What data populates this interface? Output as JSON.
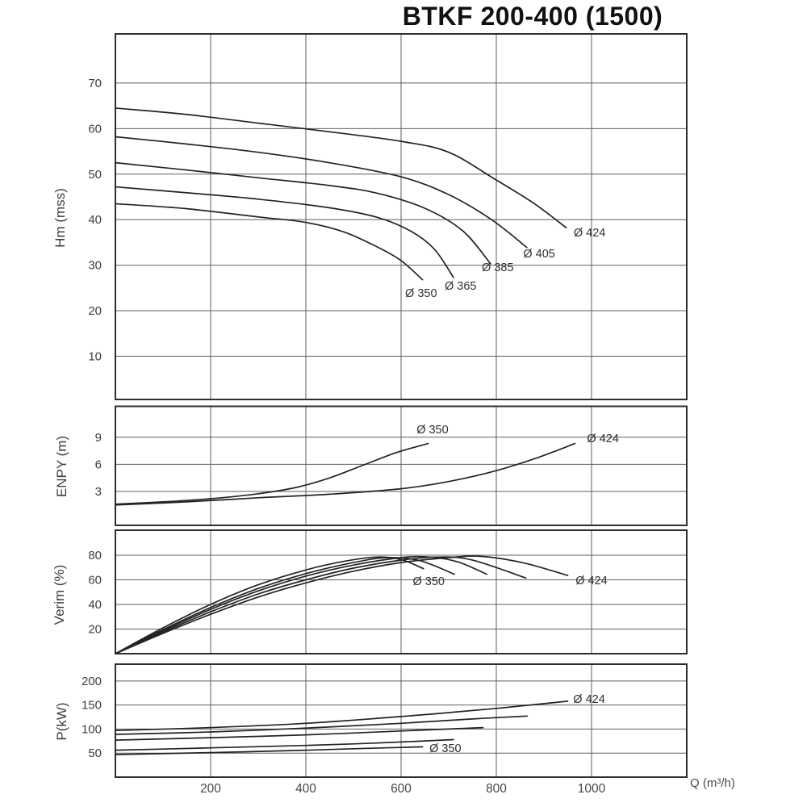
{
  "title": "BTKF 200-400 (1500)",
  "x_axis": {
    "label": "Q (m³/h)",
    "ticks": [
      200,
      400,
      600,
      800,
      1000
    ],
    "range": [
      0,
      1200
    ]
  },
  "chart_data": [
    {
      "type": "line",
      "name": "head-curves",
      "ylabel": "Hm (mss)",
      "yticks": [
        10,
        20,
        30,
        40,
        50,
        60,
        70
      ],
      "ylim": [
        0.5,
        80.8
      ],
      "grid": true,
      "series": [
        {
          "name": "Ø 424",
          "points": [
            [
              0,
              64.5
            ],
            [
              150,
              63.1
            ],
            [
              300,
              61.2
            ],
            [
              450,
              59.3
            ],
            [
              600,
              57.2
            ],
            [
              700,
              54.8
            ],
            [
              800,
              48.7
            ],
            [
              880,
              43.5
            ],
            [
              947,
              38.2
            ]
          ]
        },
        {
          "name": "Ø 405",
          "points": [
            [
              0,
              58.2
            ],
            [
              150,
              56.6
            ],
            [
              300,
              54.8
            ],
            [
              450,
              52.5
            ],
            [
              600,
              49.4
            ],
            [
              700,
              45.5
            ],
            [
              790,
              40.0
            ],
            [
              864,
              33.9
            ]
          ]
        },
        {
          "name": "Ø 385",
          "points": [
            [
              0,
              52.5
            ],
            [
              150,
              50.9
            ],
            [
              300,
              49.2
            ],
            [
              450,
              47.5
            ],
            [
              550,
              45.8
            ],
            [
              650,
              42.5
            ],
            [
              730,
              37.5
            ],
            [
              788,
              30.3
            ]
          ]
        },
        {
          "name": "Ø 365",
          "points": [
            [
              0,
              47.2
            ],
            [
              150,
              45.9
            ],
            [
              300,
              44.5
            ],
            [
              450,
              42.6
            ],
            [
              550,
              40.5
            ],
            [
              620,
              37.5
            ],
            [
              670,
              33.5
            ],
            [
              710,
              27.3
            ]
          ]
        },
        {
          "name": "Ø 350",
          "points": [
            [
              0,
              43.5
            ],
            [
              150,
              42.4
            ],
            [
              300,
              40.6
            ],
            [
              400,
              39.4
            ],
            [
              480,
              37.3
            ],
            [
              550,
              34.0
            ],
            [
              600,
              31.0
            ],
            [
              645,
              26.8
            ]
          ]
        }
      ],
      "labels": [
        {
          "text": "Ø 350",
          "q": 642,
          "v": 23.9
        },
        {
          "text": "Ø 365",
          "q": 725,
          "v": 25.5
        },
        {
          "text": "Ø 385",
          "q": 803,
          "v": 29.6
        },
        {
          "text": "Ø 405",
          "q": 890,
          "v": 32.6
        },
        {
          "text": "Ø 424",
          "q": 996,
          "v": 37.2
        }
      ]
    },
    {
      "type": "line",
      "name": "npsh-curves",
      "ylabel": "ENPY (m)",
      "yticks": [
        3,
        6,
        9
      ],
      "ylim": [
        -0.75,
        12.42
      ],
      "grid": true,
      "series": [
        {
          "name": "Ø 350",
          "points": [
            [
              0,
              1.6
            ],
            [
              100,
              1.85
            ],
            [
              200,
              2.2
            ],
            [
              300,
              2.75
            ],
            [
              380,
              3.45
            ],
            [
              450,
              4.5
            ],
            [
              520,
              5.9
            ],
            [
              590,
              7.3
            ],
            [
              657,
              8.3
            ]
          ]
        },
        {
          "name": "Ø 424",
          "points": [
            [
              0,
              1.5
            ],
            [
              150,
              1.85
            ],
            [
              300,
              2.3
            ],
            [
              450,
              2.7
            ],
            [
              600,
              3.3
            ],
            [
              700,
              4.1
            ],
            [
              800,
              5.3
            ],
            [
              890,
              6.8
            ],
            [
              965,
              8.3
            ]
          ]
        }
      ],
      "labels": [
        {
          "text": "Ø 350",
          "q": 666,
          "v": 9.88
        },
        {
          "text": "Ø 424",
          "q": 1024,
          "v": 8.89
        }
      ]
    },
    {
      "type": "line",
      "name": "efficiency-curves",
      "ylabel": "Verim (%)",
      "yticks": [
        20,
        40,
        60,
        80
      ],
      "ylim": [
        0,
        100.3
      ],
      "grid": true,
      "series": [
        {
          "name": "Ø 350",
          "points": [
            [
              0,
              0
            ],
            [
              100,
              21
            ],
            [
              200,
              40
            ],
            [
              300,
              56
            ],
            [
              400,
              68
            ],
            [
              480,
              75
            ],
            [
              550,
              78.5
            ],
            [
              600,
              76.5
            ],
            [
              647,
              69
            ]
          ]
        },
        {
          "name": "Ø 365",
          "points": [
            [
              0,
              0
            ],
            [
              100,
              19.5
            ],
            [
              200,
              37.5
            ],
            [
              300,
              53
            ],
            [
              400,
              65
            ],
            [
              500,
              74
            ],
            [
              570,
              78
            ],
            [
              640,
              75.5
            ],
            [
              712,
              64.5
            ]
          ]
        },
        {
          "name": "Ø 385",
          "points": [
            [
              0,
              0
            ],
            [
              100,
              18.5
            ],
            [
              200,
              36
            ],
            [
              300,
              51
            ],
            [
              400,
              63
            ],
            [
              500,
              72
            ],
            [
              600,
              78
            ],
            [
              660,
              78.5
            ],
            [
              720,
              74.5
            ],
            [
              780,
              64.5
            ]
          ]
        },
        {
          "name": "Ø 405",
          "points": [
            [
              0,
              0
            ],
            [
              100,
              17.5
            ],
            [
              200,
              34
            ],
            [
              300,
              48.5
            ],
            [
              400,
              60
            ],
            [
              500,
              69.5
            ],
            [
              600,
              76
            ],
            [
              680,
              78.5
            ],
            [
              750,
              76
            ],
            [
              862,
              61.5
            ]
          ]
        },
        {
          "name": "Ø 424",
          "points": [
            [
              0,
              0
            ],
            [
              100,
              16.5
            ],
            [
              200,
              32
            ],
            [
              300,
              46
            ],
            [
              400,
              57.5
            ],
            [
              500,
              67
            ],
            [
              600,
              74
            ],
            [
              700,
              78
            ],
            [
              770,
              79
            ],
            [
              860,
              73.5
            ],
            [
              950,
              63.5
            ]
          ]
        }
      ],
      "labels": [
        {
          "text": "Ø 350",
          "q": 658,
          "v": 59.0
        },
        {
          "text": "Ø 424",
          "q": 1000,
          "v": 59.7
        }
      ]
    },
    {
      "type": "line",
      "name": "power-curves",
      "ylabel": "P(kW)",
      "yticks": [
        50,
        100,
        150,
        200
      ],
      "ylim": [
        0,
        235
      ],
      "grid": true,
      "series": [
        {
          "name": "Ø 424",
          "points": [
            [
              0,
              97
            ],
            [
              200,
              103
            ],
            [
              400,
              112
            ],
            [
              600,
              126
            ],
            [
              800,
              143
            ],
            [
              950,
              158
            ]
          ]
        },
        {
          "name": "Ø 405",
          "points": [
            [
              0,
              89
            ],
            [
              200,
              94
            ],
            [
              400,
              102
            ],
            [
              600,
              112
            ],
            [
              750,
              121
            ],
            [
              865,
              127
            ]
          ]
        },
        {
          "name": "Ø 385",
          "points": [
            [
              0,
              77
            ],
            [
              200,
              82
            ],
            [
              400,
              88
            ],
            [
              600,
              96
            ],
            [
              772,
              103
            ]
          ]
        },
        {
          "name": "Ø 365",
          "points": [
            [
              0,
              56
            ],
            [
              200,
              61
            ],
            [
              400,
              66
            ],
            [
              550,
              71
            ],
            [
              710,
              78
            ]
          ]
        },
        {
          "name": "Ø 350",
          "points": [
            [
              0,
              47
            ],
            [
              200,
              51
            ],
            [
              400,
              56
            ],
            [
              530,
              60
            ],
            [
              645,
              63
            ]
          ]
        }
      ],
      "labels": [
        {
          "text": "Ø 350",
          "q": 693,
          "v": 60.4
        },
        {
          "text": "Ø 424",
          "q": 995,
          "v": 162.8
        }
      ]
    }
  ],
  "colors": {
    "curve": "#232323",
    "grid": "#5f5f5f",
    "frame": "#2e2e2e",
    "text": "#3d3d3d"
  }
}
